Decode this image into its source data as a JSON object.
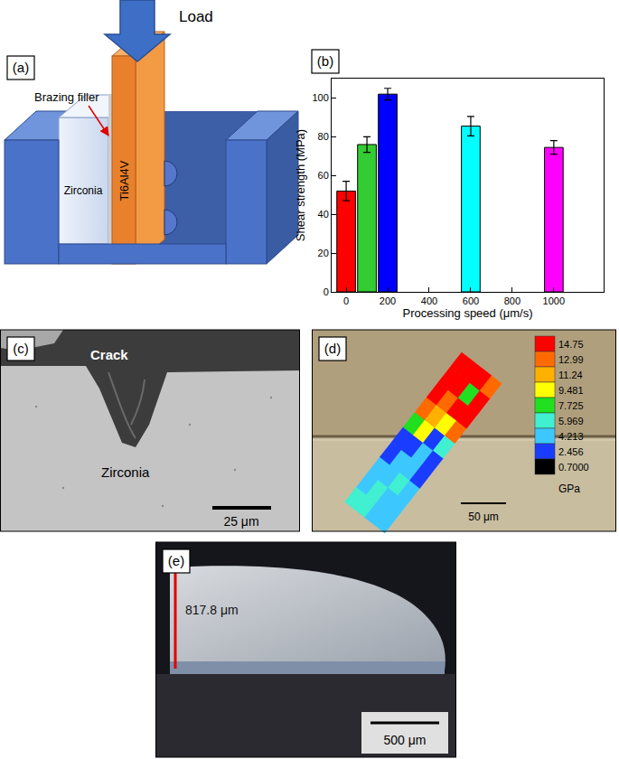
{
  "figure": {
    "a": {
      "label": "(a)",
      "load": "Load",
      "filler": "Brazing filler",
      "zirconia": "Zirconia",
      "alloy": "Ti6Al4V"
    },
    "b": {
      "label": "(b)"
    },
    "c": {
      "label": "(c)",
      "crack": "Crack",
      "material": "Zirconia",
      "scale_bar": "25 μm"
    },
    "d": {
      "label": "(d)",
      "scale_bar": "50 μm",
      "colorbar": {
        "ticks": [
          {
            "value": 0.7,
            "label": "0.7000"
          },
          2.456,
          4.213,
          5.969,
          7.725,
          9.481,
          11.24,
          12.99,
          14.75
        ],
        "colors": [
          "#000000",
          "#1a3cff",
          "#3cc8ff",
          "#40f0d0",
          "#20e020",
          "#ffff00",
          "#ffb000",
          "#ff6a00",
          "#ff0000"
        ],
        "unit": "GPa"
      },
      "cells": [
        [
          5.969,
          5.969,
          4.213,
          4.213
        ],
        [
          4.213,
          5.969,
          4.213,
          4.213
        ],
        [
          4.213,
          4.213,
          5.969,
          4.213
        ],
        [
          2.456,
          4.213,
          4.213,
          2.456
        ],
        [
          2.456,
          2.456,
          4.213,
          2.456
        ],
        [
          7.725,
          9.481,
          2.456,
          5.969
        ],
        [
          12.99,
          11.24,
          9.481,
          12.99
        ],
        [
          14.75,
          12.99,
          14.75,
          14.75
        ],
        [
          14.75,
          14.75,
          7.725,
          14.75
        ],
        [
          14.75,
          14.75,
          14.75,
          12.99
        ]
      ]
    },
    "e": {
      "label": "(e)",
      "measurement": "817.8 μm",
      "scale_bar": "500 μm"
    }
  },
  "chart_data": {
    "type": "bar",
    "x_label": "Processing speed (μm/s)",
    "y_label": "Shear strength (MPa)",
    "x": [
      0,
      100,
      200,
      600,
      1000
    ],
    "values": [
      52,
      76,
      102,
      85.5,
      74.5
    ],
    "errors": [
      5,
      4,
      3,
      5,
      3.5
    ],
    "colors": [
      "#ff0000",
      "#33cc33",
      "#0000ff",
      "#00ffff",
      "#ff00ff"
    ],
    "xlim": [
      -70,
      1240
    ],
    "xticks": [
      0,
      200,
      400,
      600,
      800,
      1000
    ],
    "ylim": [
      0,
      110
    ],
    "yticks": [
      0,
      20,
      40,
      60,
      80,
      100
    ],
    "grid": false
  }
}
